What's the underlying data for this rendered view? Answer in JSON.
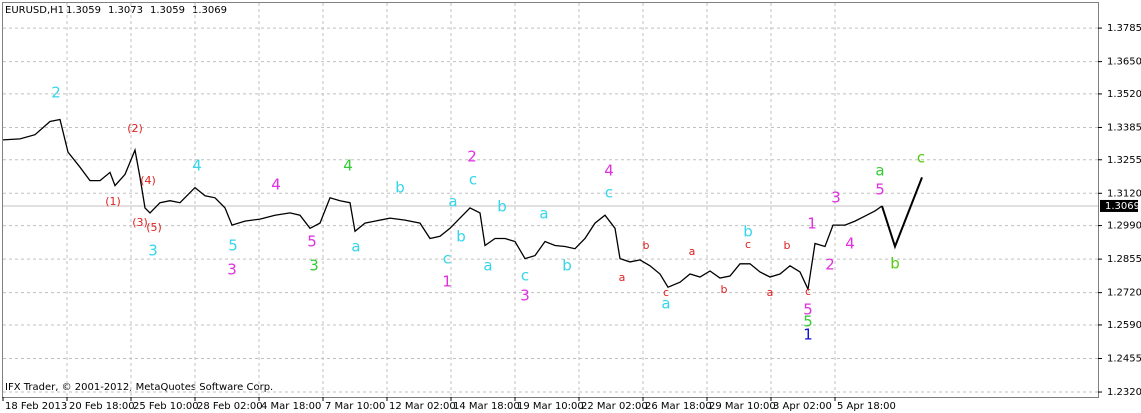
{
  "chart_data": {
    "type": "line",
    "header": {
      "symbol": "EURUSD,H1",
      "ohlc": [
        1.3059,
        1.3073,
        1.3059,
        1.3069
      ]
    },
    "footer": "IFX Trader, © 2001-2012, MetaQuotes Software Corp.",
    "color": "#000000",
    "grid": true,
    "xlim": [
      0,
      1095
    ],
    "ylim": [
      1.23,
      1.3886
    ],
    "yticks": [
      1.3785,
      {
        "value": 1.365,
        "label": "1.3650"
      },
      {
        "value": 1.352,
        "label": "1.3520"
      },
      1.3385,
      1.3255,
      {
        "value": 1.312,
        "label": "1.3120"
      },
      {
        "value": 1.299,
        "label": "1.2990"
      },
      1.2855,
      {
        "value": 1.272,
        "label": "1.2720"
      },
      {
        "value": 1.259,
        "label": "1.2590"
      },
      1.2455,
      {
        "value": 1.232,
        "label": "1.2320"
      }
    ],
    "xticks": [
      {
        "value": 0,
        "label": "18 Feb 2013"
      },
      {
        "value": 64,
        "label": "20 Feb 18:00"
      },
      {
        "value": 128,
        "label": "25 Feb 10:00"
      },
      {
        "value": 192,
        "label": "28 Feb 02:00"
      },
      {
        "value": 256,
        "label": "4 Mar 18:00"
      },
      {
        "value": 320,
        "label": "7 Mar 10:00"
      },
      {
        "value": 384,
        "label": "12 Mar 02:00"
      },
      {
        "value": 448,
        "label": "14 Mar 18:00"
      },
      {
        "value": 512,
        "label": "19 Mar 10:00"
      },
      {
        "value": 576,
        "label": "22 Mar 02:00"
      },
      {
        "value": 640,
        "label": "26 Mar 18:00"
      },
      {
        "value": 704,
        "label": "29 Mar 10:00"
      },
      {
        "value": 768,
        "label": "3 Apr 02:00"
      },
      {
        "value": 832,
        "label": "5 Apr 18:00"
      }
    ],
    "current": 1.3069,
    "x": [
      0,
      17,
      32,
      47,
      57,
      65,
      77,
      87,
      97,
      107,
      112,
      122,
      132,
      137,
      142,
      147,
      157,
      167,
      177,
      192,
      202,
      212,
      222,
      229,
      242,
      257,
      272,
      287,
      297,
      307,
      317,
      327,
      337,
      347,
      352,
      362,
      372,
      387,
      402,
      417,
      427,
      437,
      447,
      457,
      467,
      477,
      482,
      492,
      502,
      512,
      522,
      532,
      542,
      552,
      562,
      572,
      582,
      592,
      602,
      612,
      617,
      627,
      637,
      647,
      657,
      665,
      677,
      687,
      697,
      707,
      717,
      727,
      737,
      747,
      757,
      767,
      777,
      787,
      797,
      805,
      812,
      822,
      830,
      842,
      852,
      862,
      872,
      879
    ],
    "values": [
      1.3335,
      1.3339,
      1.3356,
      1.3409,
      1.3417,
      1.3286,
      1.3225,
      1.3171,
      1.3171,
      1.3204,
      1.3151,
      1.3196,
      1.3294,
      1.3184,
      1.3061,
      1.3041,
      1.3082,
      1.309,
      1.3082,
      1.3143,
      1.311,
      1.3102,
      1.3061,
      1.2992,
      1.3008,
      1.3016,
      1.3032,
      1.3041,
      1.3032,
      1.2979,
      1.3,
      1.3102,
      1.309,
      1.3082,
      1.2967,
      1.3,
      1.3008,
      1.302,
      1.3012,
      1.3,
      1.2938,
      1.2947,
      1.2979,
      1.302,
      1.3061,
      1.3041,
      1.291,
      1.2938,
      1.2938,
      1.2926,
      1.2857,
      1.2869,
      1.2926,
      1.291,
      1.2906,
      1.2897,
      1.2938,
      1.3,
      1.3032,
      1.2979,
      1.2857,
      1.2844,
      1.2852,
      1.2828,
      1.2795,
      1.2742,
      1.2762,
      1.2795,
      1.2783,
      1.2807,
      1.2779,
      1.2787,
      1.2836,
      1.2836,
      1.2803,
      1.2783,
      1.2795,
      1.2828,
      1.2803,
      1.2734,
      1.2918,
      1.2906,
      1.2992,
      1.2992,
      1.3008,
      1.3028,
      1.3049,
      1.3069
    ],
    "projection": {
      "x": [
        879,
        892,
        919
      ],
      "values": [
        1.3069,
        1.2906,
        1.3184
      ]
    },
    "annotations": [
      {
        "text": "2",
        "color": "#33d6ea"
      },
      {
        "text": "(2)",
        "color": "#e02020"
      },
      {
        "text": "(1)",
        "color": "#e02020"
      },
      {
        "text": "(4)",
        "color": "#e02020"
      },
      {
        "text": "(3)",
        "color": "#e02020"
      },
      {
        "text": "(5)",
        "color": "#e02020"
      },
      {
        "text": "3",
        "color": "#33d6ea"
      },
      {
        "text": "4",
        "color": "#33d6ea"
      },
      {
        "text": "5",
        "color": "#33d6ea"
      },
      {
        "text": "3",
        "color": "#e030e0"
      },
      {
        "text": "4",
        "color": "#e030e0"
      },
      {
        "text": "5",
        "color": "#e030e0"
      },
      {
        "text": "3",
        "color": "#33cc33"
      },
      {
        "text": "4",
        "color": "#33cc33"
      },
      {
        "text": "a",
        "color": "#33d6ea"
      },
      {
        "text": "b",
        "color": "#33d6ea"
      },
      {
        "text": "a",
        "color": "#33d6ea"
      },
      {
        "text": "b",
        "color": "#33d6ea"
      },
      {
        "text": "c",
        "color": "#33d6ea"
      },
      {
        "text": "1",
        "color": "#e030e0"
      },
      {
        "text": "2",
        "color": "#e030e0"
      },
      {
        "text": "c",
        "color": "#33d6ea"
      },
      {
        "text": "b",
        "color": "#33d6ea"
      },
      {
        "text": "a",
        "color": "#33d6ea"
      },
      {
        "text": "a",
        "color": "#33d6ea"
      },
      {
        "text": "c",
        "color": "#33d6ea"
      },
      {
        "text": "3",
        "color": "#e030e0"
      },
      {
        "text": "b",
        "color": "#33d6ea"
      },
      {
        "text": "4",
        "color": "#e030e0"
      },
      {
        "text": "c",
        "color": "#33d6ea"
      },
      {
        "text": "a",
        "color": "#e02020"
      },
      {
        "text": "b",
        "color": "#e02020"
      },
      {
        "text": "a",
        "color": "#e02020"
      },
      {
        "text": "c",
        "color": "#e02020"
      },
      {
        "text": "a",
        "color": "#33d6ea"
      },
      {
        "text": "b",
        "color": "#e02020"
      },
      {
        "text": "b",
        "color": "#33d6ea"
      },
      {
        "text": "c",
        "color": "#e02020"
      },
      {
        "text": "b",
        "color": "#e02020"
      },
      {
        "text": "a",
        "color": "#e02020"
      },
      {
        "text": "c",
        "color": "#e02020"
      },
      {
        "text": "5",
        "color": "#e030e0"
      },
      {
        "text": "5",
        "color": "#33cc33"
      },
      {
        "text": "1",
        "color": "#1010d0"
      },
      {
        "text": "1",
        "color": "#e030e0"
      },
      {
        "text": "2",
        "color": "#e030e0"
      },
      {
        "text": "3",
        "color": "#e030e0"
      },
      {
        "text": "4",
        "color": "#e030e0"
      },
      {
        "text": "a",
        "color": "#33cc33"
      },
      {
        "text": "5",
        "color": "#e030e0"
      },
      {
        "text": "b",
        "color": "#55cc11"
      },
      {
        "text": "c",
        "color": "#55cc11"
      }
    ]
  }
}
